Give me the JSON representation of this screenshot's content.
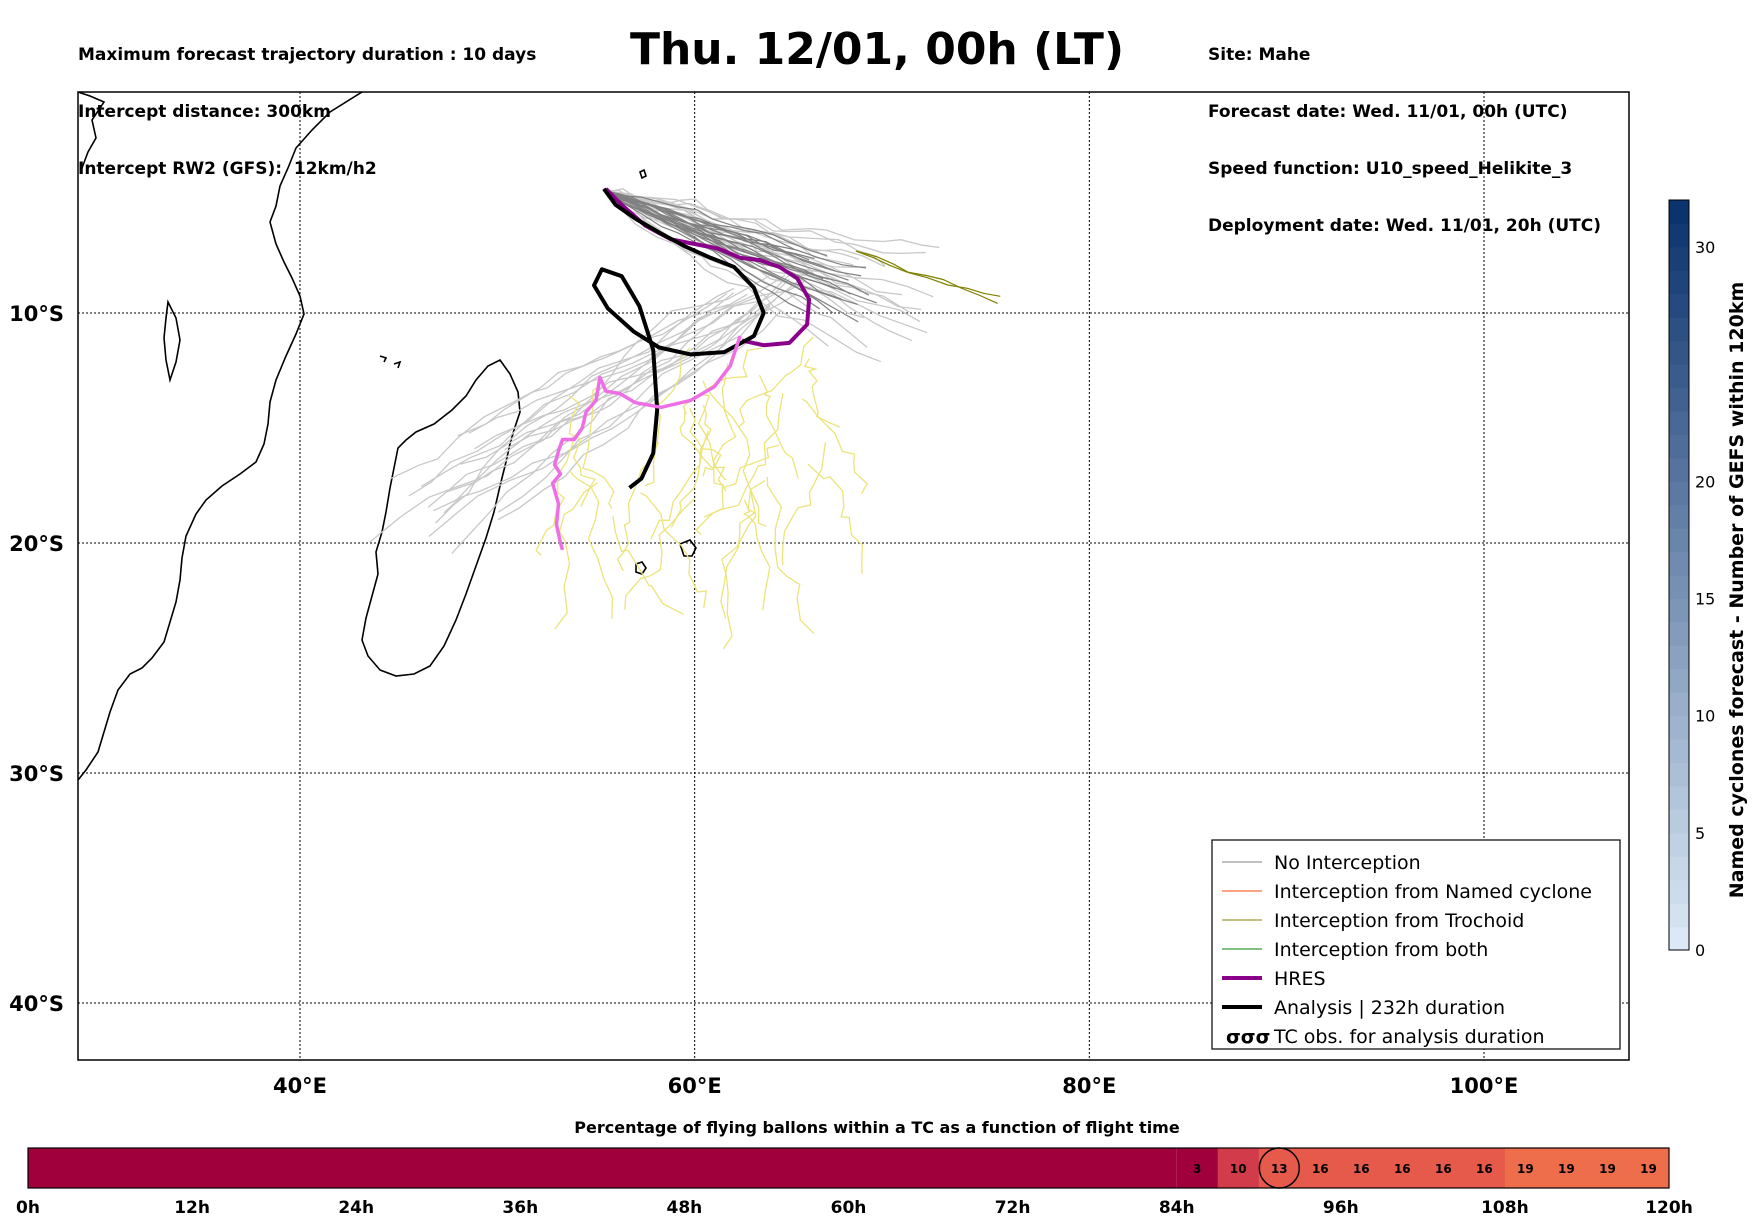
{
  "header": {
    "left": [
      "Maximum forecast trajectory duration : 10 days",
      "Intercept distance: 300km",
      "Intercept RW2 (GFS):  12km/h2"
    ],
    "title": "Thu. 12/01, 00h (LT)",
    "right": [
      "Site: Mahe",
      "Forecast date: Wed. 11/01, 00h (UTC)",
      "Speed function: U10_speed_Helikite_3",
      "Deployment date: Wed. 11/01, 20h (UTC)"
    ]
  },
  "colors": {
    "no_interception": "#808080",
    "named_cyclone": "#ff4500",
    "trochoid": "#808000",
    "both": "#008000",
    "hres": "#8b008b",
    "analysis": "#000000",
    "gefs_light": "#c8c8c8",
    "ensemble_yellow": "#ece47a",
    "pink": "#ee6ee6",
    "timebar_dark": "#a0003c",
    "colorbar_low": "#deebf7",
    "colorbar_high": "#08306b"
  },
  "chart_data": {
    "type": "line",
    "map": {
      "lon_range": [
        30,
        100
      ],
      "lat_range": [
        -40,
        -1
      ],
      "lon_ticks": [
        "40°E",
        "60°E",
        "80°E",
        "100°E"
      ],
      "lon_tick_values": [
        40,
        60,
        80,
        100
      ],
      "lat_ticks": [
        "10°S",
        "20°S",
        "30°S",
        "40°S"
      ],
      "lat_tick_values": [
        -10,
        -20,
        -30,
        -40
      ],
      "grid": true
    },
    "series": [
      {
        "name": "HRES",
        "points": [
          [
            55.5,
            -4.6
          ],
          [
            56.3,
            -5.3
          ],
          [
            57.5,
            -6.2
          ],
          [
            58.8,
            -6.8
          ],
          [
            60,
            -7.0
          ],
          [
            61.2,
            -7.2
          ],
          [
            62.3,
            -7.6
          ],
          [
            63.3,
            -7.7
          ],
          [
            64.3,
            -8.0
          ],
          [
            65.2,
            -8.5
          ],
          [
            65.8,
            -9.4
          ],
          [
            65.7,
            -10.5
          ],
          [
            64.8,
            -11.3
          ],
          [
            63.5,
            -11.4
          ],
          [
            62.4,
            -11.2
          ]
        ]
      },
      {
        "name": "Analysis | 232h duration",
        "points": [
          [
            55.4,
            -4.6
          ],
          [
            56.0,
            -5.3
          ],
          [
            57.0,
            -5.9
          ],
          [
            58.2,
            -6.5
          ],
          [
            59.5,
            -7.1
          ],
          [
            60.8,
            -7.6
          ],
          [
            62.0,
            -8.0
          ],
          [
            63.0,
            -8.9
          ],
          [
            63.5,
            -10.0
          ],
          [
            63.0,
            -11.0
          ],
          [
            61.5,
            -11.7
          ],
          [
            59.8,
            -11.8
          ],
          [
            58.2,
            -11.5
          ],
          [
            56.9,
            -10.8
          ],
          [
            55.6,
            -9.8
          ],
          [
            54.9,
            -8.8
          ],
          [
            55.3,
            -8.1
          ],
          [
            56.3,
            -8.4
          ],
          [
            57.2,
            -9.7
          ],
          [
            57.9,
            -11.6
          ],
          [
            58.1,
            -14.2
          ],
          [
            57.9,
            -16.1
          ],
          [
            57.3,
            -17.2
          ],
          [
            56.7,
            -17.6
          ]
        ]
      },
      {
        "name": "Pink trajectory",
        "points": [
          [
            62.3,
            -11.0
          ],
          [
            61.8,
            -12.3
          ],
          [
            61.0,
            -13.2
          ],
          [
            59.8,
            -13.8
          ],
          [
            58.3,
            -14.1
          ],
          [
            57.0,
            -13.9
          ],
          [
            56.2,
            -13.5
          ],
          [
            55.5,
            -13.4
          ],
          [
            55.2,
            -12.8
          ],
          [
            55.0,
            -13.8
          ],
          [
            54.5,
            -14.3
          ],
          [
            54.3,
            -15.0
          ],
          [
            53.9,
            -15.5
          ],
          [
            53.3,
            -15.5
          ],
          [
            53.1,
            -16.0
          ],
          [
            52.9,
            -16.6
          ],
          [
            53.2,
            -17.0
          ],
          [
            52.8,
            -17.4
          ],
          [
            53.1,
            -18.3
          ],
          [
            53.0,
            -19.2
          ],
          [
            53.2,
            -20.0
          ],
          [
            53.3,
            -20.3
          ]
        ]
      }
    ],
    "legend": {
      "position": "bottom-right",
      "entries": [
        {
          "label": "No Interception",
          "color": "#808080",
          "width": 1
        },
        {
          "label": "Interception from Named cyclone",
          "color": "#ff4500",
          "width": 1
        },
        {
          "label": "Interception from Trochoid",
          "color": "#808000",
          "width": 1
        },
        {
          "label": "Interception from both",
          "color": "#008000",
          "width": 1
        },
        {
          "label": "HRES",
          "color": "#8b008b",
          "width": 4
        },
        {
          "label": "Analysis | 232h duration",
          "color": "#000000",
          "width": 4
        },
        {
          "label": "TC obs. for analysis duration",
          "symbol": "σσσ"
        }
      ]
    },
    "colorbar": {
      "label": "Named cyclones forecast - Number of GEFS within 120km",
      "range": [
        0,
        32
      ],
      "ticks": [
        0,
        5,
        10,
        15,
        20,
        30
      ]
    },
    "timebar": {
      "title": "Percentage of flying ballons within a TC as a function of flight time",
      "hour_range": [
        0,
        120
      ],
      "ticks": [
        "0h",
        "12h",
        "24h",
        "36h",
        "48h",
        "60h",
        "72h",
        "84h",
        "96h",
        "108h",
        "120h"
      ],
      "tick_values": [
        0,
        12,
        24,
        36,
        48,
        60,
        72,
        84,
        96,
        108,
        120
      ],
      "cells_start_hour": 84,
      "cell_hours": 3,
      "values": [
        3,
        10,
        13,
        16,
        16,
        16,
        16,
        16,
        19,
        19,
        19,
        19
      ],
      "highlighted_index": 2
    }
  }
}
